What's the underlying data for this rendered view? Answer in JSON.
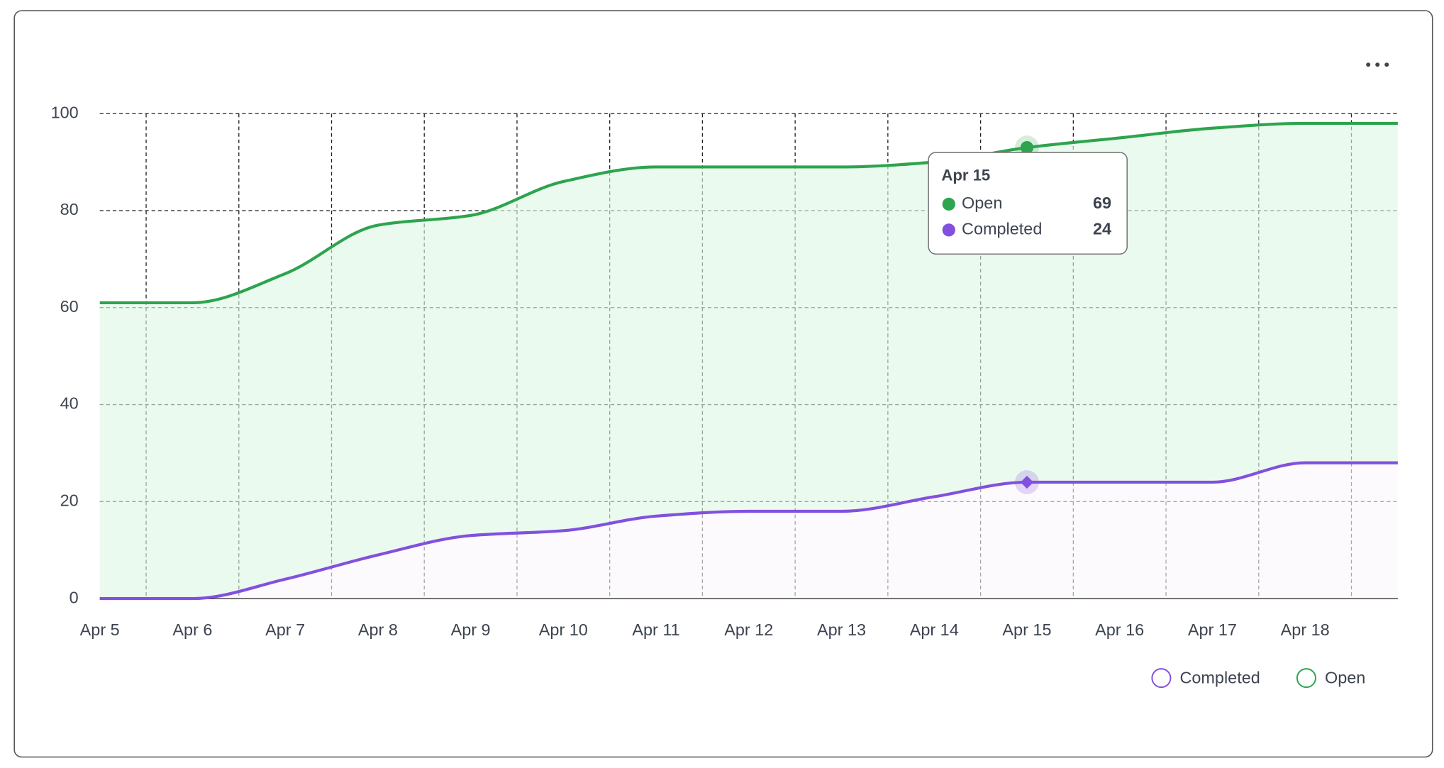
{
  "chart_data": {
    "type": "stacked-area",
    "categories": [
      "Apr 5",
      "Apr 6",
      "Apr 7",
      "Apr 8",
      "Apr 9",
      "Apr 10",
      "Apr 11",
      "Apr 12",
      "Apr 13",
      "Apr 14",
      "Apr 15",
      "Apr 16",
      "Apr 17",
      "Apr 18",
      null
    ],
    "series": [
      {
        "name": "Completed",
        "color": "#8250df",
        "fill": "#fbf7fe",
        "values": [
          0,
          0,
          4,
          9,
          13,
          14,
          17,
          18,
          18,
          21,
          24,
          24,
          24,
          28,
          28
        ]
      },
      {
        "name": "Open",
        "color": "#2da44e",
        "fill": "#dff7e4",
        "values": [
          61,
          61,
          63,
          68,
          66,
          72,
          72,
          71,
          71,
          69,
          69,
          71,
          73,
          70,
          70
        ]
      }
    ],
    "ylim": [
      0,
      100
    ],
    "yticks": [
      0,
      20,
      40,
      60,
      80,
      100
    ],
    "grid": true,
    "stacked": true,
    "legend": "bottom-right"
  }
}
